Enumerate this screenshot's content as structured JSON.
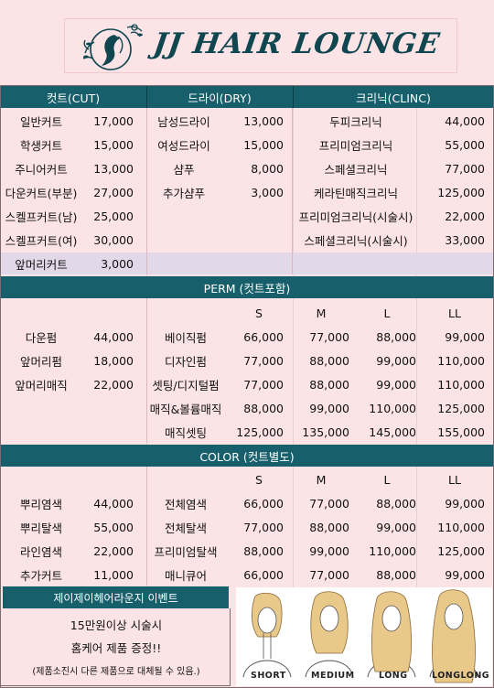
{
  "brand": "JJ HAIR LOUNGE",
  "colors": {
    "teal": "#175f6b",
    "pink": "#fbe3e6",
    "lavender": "#e3d8e8",
    "brand_text": "#0f4650"
  },
  "headers": {
    "cut": "컷트(CUT)",
    "dry": "드라이(DRY)",
    "clinic": "크리닉(CLINC)"
  },
  "cut_items": [
    {
      "name": "일반커트",
      "price": "17,000"
    },
    {
      "name": "학생커트",
      "price": "15,000"
    },
    {
      "name": "주니어커트",
      "price": "13,000"
    },
    {
      "name": "다운커트(부분)",
      "price": "27,000"
    },
    {
      "name": "스켈프커트(남)",
      "price": "25,000"
    },
    {
      "name": "스켈프커트(여)",
      "price": "30,000"
    },
    {
      "name": "앞머리커트",
      "price": "3,000"
    }
  ],
  "dry_items": [
    {
      "name": "남성드라이",
      "price": "13,000"
    },
    {
      "name": "여성드라이",
      "price": "15,000"
    },
    {
      "name": "샴푸",
      "price": "8,000"
    },
    {
      "name": "추가샴푸",
      "price": "3,000"
    }
  ],
  "clinic_items": [
    {
      "name": "두피크리닉",
      "price": "44,000"
    },
    {
      "name": "프리미엄크리닉",
      "price": "55,000"
    },
    {
      "name": "스페셜크리닉",
      "price": "77,000"
    },
    {
      "name": "케라틴매직크리닉",
      "price": "125,000"
    },
    {
      "name": "프리미엄크리닉(시술시)",
      "price": "22,000"
    },
    {
      "name": "스페셜크리닉(시술시)",
      "price": "33,000"
    }
  ],
  "perm": {
    "title": "PERM (컷트포함)",
    "sizes": [
      "S",
      "M",
      "L",
      "LL"
    ],
    "simple": [
      {
        "name": "다운펌",
        "price": "44,000"
      },
      {
        "name": "앞머리펌",
        "price": "18,000"
      },
      {
        "name": "앞머리매직",
        "price": "22,000"
      }
    ],
    "items": [
      {
        "name": "베이직펌",
        "prices": [
          "66,000",
          "77,000",
          "88,000",
          "99,000"
        ]
      },
      {
        "name": "디자인펌",
        "prices": [
          "77,000",
          "88,000",
          "99,000",
          "110,000"
        ]
      },
      {
        "name": "셋팅/디지털펌",
        "prices": [
          "77,000",
          "88,000",
          "99,000",
          "110,000"
        ]
      },
      {
        "name": "매직&볼륨매직",
        "prices": [
          "88,000",
          "99,000",
          "110,000",
          "125,000"
        ]
      },
      {
        "name": "매직셋팅",
        "prices": [
          "125,000",
          "135,000",
          "145,000",
          "155,000"
        ]
      }
    ]
  },
  "color": {
    "title": "COLOR (컷트별도)",
    "sizes": [
      "S",
      "M",
      "L",
      "LL"
    ],
    "simple": [
      {
        "name": "뿌리염색",
        "price": "44,000"
      },
      {
        "name": "뿌리탈색",
        "price": "55,000"
      },
      {
        "name": "라인염색",
        "price": "22,000"
      },
      {
        "name": "추가커트",
        "price": "11,000"
      }
    ],
    "items": [
      {
        "name": "전체염색",
        "prices": [
          "66,000",
          "77,000",
          "88,000",
          "99,000"
        ]
      },
      {
        "name": "전체탈색",
        "prices": [
          "77,000",
          "88,000",
          "99,000",
          "110,000"
        ]
      },
      {
        "name": "프리미엄탈색",
        "prices": [
          "88,000",
          "99,000",
          "110,000",
          "125,000"
        ]
      },
      {
        "name": "매니큐어",
        "prices": [
          "66,000",
          "77,000",
          "88,000",
          "99,000"
        ]
      }
    ]
  },
  "event": {
    "title": "제이제이헤어라운지 이벤트",
    "line1": "15만원이상 시술시",
    "line2": "홈케어 제품 증정!!",
    "note": "(제품소진시 다른 제품으로 대체될 수 있음.)"
  },
  "hair_lengths": [
    "SHORT",
    "MEDIUM",
    "LONG",
    "LONGLONG"
  ]
}
